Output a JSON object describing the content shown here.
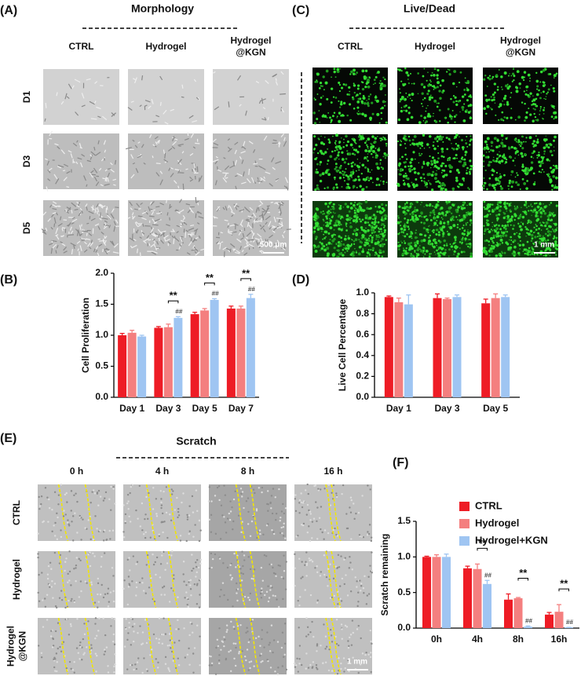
{
  "panel_labels": [
    "(A)",
    "(B)",
    "(C)",
    "(D)",
    "(E)",
    "(F)"
  ],
  "morphology": {
    "title": "Morphology",
    "columns": [
      "CTRL",
      "Hydrogel",
      [
        "Hydrogel",
        "@KGN"
      ]
    ],
    "rows": [
      "D1",
      "D3",
      "D5"
    ],
    "scale_bar": "500 μm"
  },
  "live_dead": {
    "title": "Live/Dead",
    "columns": [
      "CTRL",
      "Hydrogel",
      [
        "Hydrogel",
        "@KGN"
      ]
    ],
    "scale_bar": "1 mm"
  },
  "scratch": {
    "title": "Scratch",
    "columns": [
      "0 h",
      "4 h",
      "8 h",
      "16 h"
    ],
    "rows": [
      "CTRL",
      "Hydrogel",
      [
        "Hydrogel",
        "@KGN"
      ]
    ],
    "scale_bar": "1 mm"
  },
  "chart_data": [
    {
      "type": "bar",
      "ylabel": "Cell Proliferation",
      "categories": [
        "Day 1",
        "Day 3",
        "Day 5",
        "Day 7"
      ],
      "series": [
        {
          "color": "#ee1c25",
          "values": [
            1.0,
            1.12,
            1.34,
            1.43
          ],
          "errors": [
            0.03,
            0.02,
            0.03,
            0.04
          ]
        },
        {
          "color": "#f47f7f",
          "values": [
            1.04,
            1.13,
            1.4,
            1.43
          ],
          "errors": [
            0.04,
            0.05,
            0.03,
            0.04
          ]
        },
        {
          "color": "#9fc5f2",
          "values": [
            0.98,
            1.28,
            1.57,
            1.6
          ],
          "errors": [
            0.02,
            0.02,
            0.02,
            0.06
          ]
        }
      ],
      "significance": [
        null,
        "**",
        "**",
        "**"
      ],
      "marks_vs_control": [
        null,
        "##",
        "##",
        "##"
      ],
      "ylim": [
        0,
        2.0
      ],
      "yticks": [
        {
          "value": 0,
          "label": "0.0"
        },
        {
          "value": 0.5,
          "label": "0.5"
        },
        {
          "value": 1.0,
          "label": "1.0"
        },
        {
          "value": 1.5,
          "label": "1.5"
        },
        {
          "value": 2.0,
          "label": "2.0"
        }
      ]
    },
    {
      "type": "bar",
      "ylabel": "Live Cell Percentage",
      "categories": [
        "Day 1",
        "Day 3",
        "Day 5"
      ],
      "series": [
        {
          "color": "#ee1c25",
          "values": [
            0.96,
            0.95,
            0.9
          ],
          "errors": [
            0.01,
            0.04,
            0.04
          ]
        },
        {
          "color": "#f47f7f",
          "values": [
            0.91,
            0.94,
            0.95
          ],
          "errors": [
            0.04,
            0.01,
            0.04
          ]
        },
        {
          "color": "#9fc5f2",
          "values": [
            0.89,
            0.96,
            0.96
          ],
          "errors": [
            0.09,
            0.02,
            0.02
          ]
        }
      ],
      "ylim": [
        0,
        1.0
      ],
      "yticks": [
        {
          "value": 0,
          "label": "0.0"
        },
        {
          "value": 0.2,
          "label": "0.2"
        },
        {
          "value": 0.4,
          "label": "0.4"
        },
        {
          "value": 0.6,
          "label": "0.6"
        },
        {
          "value": 0.8,
          "label": "0.8"
        },
        {
          "value": 1.0,
          "label": "1.0"
        }
      ]
    },
    {
      "type": "bar",
      "ylabel": "Scratch remaining",
      "categories": [
        "0h",
        "4h",
        "8h",
        "16h"
      ],
      "series": [
        {
          "name": "CTRL",
          "color": "#ee1c25",
          "values": [
            1.0,
            0.84,
            0.4,
            0.19
          ],
          "errors": [
            0.01,
            0.03,
            0.08,
            0.03
          ]
        },
        {
          "name": "Hydrogel",
          "color": "#f47f7f",
          "values": [
            1.0,
            0.83,
            0.42,
            0.23
          ],
          "errors": [
            0.03,
            0.07,
            0.01,
            0.1
          ]
        },
        {
          "name": "Hydrogel+KGN",
          "color": "#9fc5f2",
          "values": [
            1.0,
            0.62,
            0.02,
            0.01
          ],
          "errors": [
            0.04,
            0.05,
            0.01,
            0.0
          ]
        }
      ],
      "significance": [
        null,
        "**",
        "**",
        "**"
      ],
      "marks_vs_control": [
        null,
        "##",
        "##",
        "##"
      ],
      "legend": "upper right",
      "ylim": [
        0,
        1.5
      ],
      "yticks": [
        {
          "value": 0,
          "label": "0.0"
        },
        {
          "value": 0.5,
          "label": "0.5"
        },
        {
          "value": 1.0,
          "label": "1.0"
        },
        {
          "value": 1.5,
          "label": "1.5"
        }
      ]
    }
  ]
}
